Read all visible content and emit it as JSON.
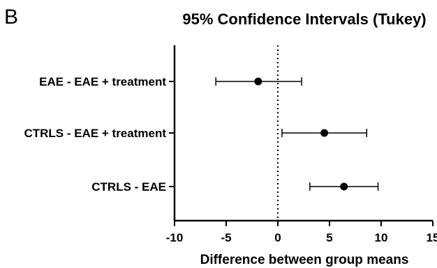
{
  "panel_label": "B",
  "chart_data": {
    "type": "scatter",
    "title": "95% Confidence Intervals (Tukey)",
    "xlabel": "Difference between group means",
    "ylabel": "",
    "xlim": [
      -10,
      15
    ],
    "xticks": [
      -10,
      -5,
      0,
      5,
      10,
      15
    ],
    "xtick_labels": [
      "-10",
      "-5",
      "0",
      "5",
      "10",
      "15"
    ],
    "reference_line": {
      "x": 0,
      "style": "dotted"
    },
    "grid": false,
    "categories": [
      "EAE - EAE + treatment",
      "CTRLS - EAE + treatment",
      "CTRLS - EAE"
    ],
    "estimates": [
      -1.9,
      4.5,
      6.4
    ],
    "lower": [
      -6.0,
      0.4,
      3.1
    ],
    "upper": [
      2.3,
      8.6,
      9.7
    ],
    "colors": {
      "marker": "#000000",
      "axis": "#000000"
    }
  }
}
